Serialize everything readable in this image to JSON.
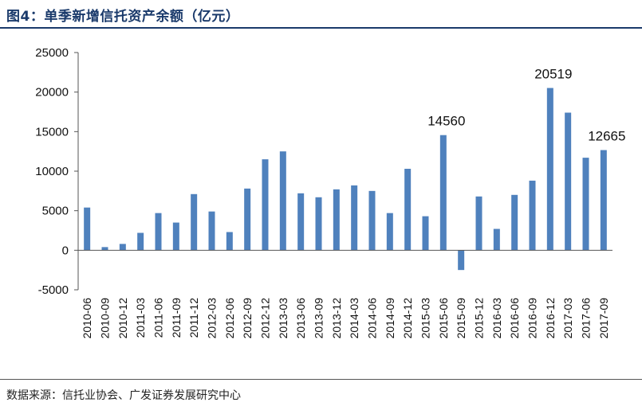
{
  "figure": {
    "title": "图4：单季新增信托资产余额（亿元）",
    "source": "数据来源：信托业协会、广发证券发展研究中心"
  },
  "chart_data": {
    "type": "bar",
    "categories": [
      "2010-06",
      "2010-09",
      "2010-12",
      "2011-03",
      "2011-06",
      "2011-09",
      "2011-12",
      "2012-03",
      "2012-06",
      "2012-09",
      "2012-12",
      "2013-03",
      "2013-06",
      "2013-09",
      "2013-12",
      "2014-03",
      "2014-06",
      "2014-09",
      "2014-12",
      "2015-03",
      "2015-06",
      "2015-09",
      "2015-12",
      "2016-03",
      "2016-06",
      "2016-09",
      "2016-12",
      "2017-03",
      "2017-06",
      "2017-09"
    ],
    "values": [
      5400,
      400,
      800,
      2200,
      4700,
      3500,
      7100,
      4900,
      2300,
      7800,
      11500,
      12500,
      7200,
      6700,
      7700,
      8200,
      7500,
      4700,
      10300,
      4300,
      14560,
      -2500,
      6800,
      2700,
      7000,
      8800,
      20519,
      17400,
      11700,
      12665
    ],
    "data_labels": [
      {
        "index": 20,
        "text": "14560"
      },
      {
        "index": 26,
        "text": "20519"
      },
      {
        "index": 29,
        "text": "12665"
      }
    ],
    "ylim": [
      -5000,
      25000
    ],
    "yticks": [
      "25000",
      "20000",
      "15000",
      "10000",
      "5000",
      "0",
      "-5000"
    ],
    "bar_color": "#4f81bd",
    "title": "",
    "xlabel": "",
    "ylabel": "",
    "grid": false
  }
}
